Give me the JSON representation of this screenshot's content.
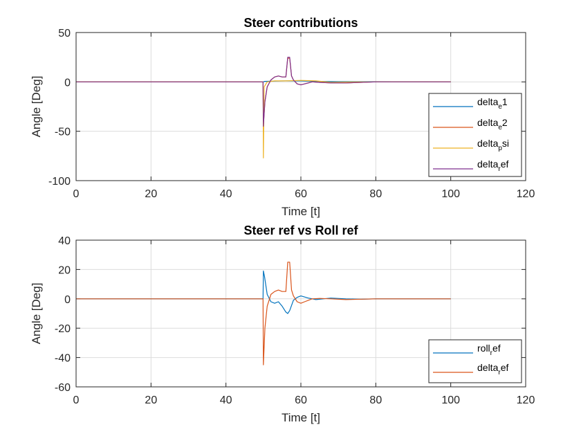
{
  "chart_data": [
    {
      "type": "line",
      "title": "Steer contributions",
      "xlabel": "Time [t]",
      "ylabel": "Angle [Deg]",
      "xlim": [
        0,
        120
      ],
      "ylim": [
        -100,
        50
      ],
      "xticks": [
        "0",
        "20",
        "40",
        "60",
        "80",
        "100",
        "120"
      ],
      "yticks": [
        "-100",
        "-50",
        "0",
        "50"
      ],
      "grid": true,
      "legend_position": "bottom-right",
      "series": [
        {
          "name": "delta_e1",
          "legend_main": "delta",
          "legend_sub": "e",
          "legend_tail": "1",
          "color": "#0072BD",
          "x": [
            0,
            49.9,
            50,
            50.3,
            51,
            53,
            56,
            60,
            65,
            70,
            100
          ],
          "y": [
            0,
            0,
            0,
            0.5,
            0.6,
            0.8,
            1,
            1,
            0.5,
            0.2,
            0
          ]
        },
        {
          "name": "delta_e2",
          "legend_main": "delta",
          "legend_sub": "e",
          "legend_tail": "2",
          "color": "#D95319",
          "x": [
            0,
            49.9,
            50,
            50.4,
            51,
            52,
            53,
            54,
            55,
            56,
            56.5,
            57,
            57.5,
            58,
            59,
            60,
            61,
            62,
            63,
            65,
            68,
            72,
            80,
            100
          ],
          "y": [
            0,
            0,
            -44,
            -20,
            -5,
            2,
            5,
            6,
            5,
            5,
            24,
            24,
            6,
            2,
            -2,
            -3,
            -2,
            -1,
            0,
            -0.5,
            -1,
            -1,
            0,
            0
          ]
        },
        {
          "name": "delta_psi",
          "legend_main": "delta",
          "legend_sub": "p",
          "legend_tail": "si",
          "color": "#EDB120",
          "x": [
            0,
            49.9,
            50,
            50.2,
            51,
            53,
            56,
            60,
            64,
            68,
            75,
            100
          ],
          "y": [
            0,
            0,
            -77,
            -5,
            0,
            1,
            1,
            1.5,
            1,
            -0.5,
            0,
            0
          ]
        },
        {
          "name": "delta_ref",
          "legend_main": "delta",
          "legend_sub": "r",
          "legend_tail": "ef",
          "color": "#7E2F8E",
          "x": [
            0,
            49.9,
            50,
            50.4,
            51,
            52,
            53,
            54,
            55,
            56,
            56.5,
            57,
            57.5,
            58,
            59,
            60,
            61,
            62,
            63,
            65,
            68,
            72,
            80,
            100
          ],
          "y": [
            0,
            0,
            -45,
            -20,
            -5,
            2,
            5,
            6,
            5,
            5,
            25,
            25,
            6,
            2,
            -2,
            -3,
            -2,
            -1,
            0,
            -0.5,
            -1,
            -1,
            0,
            0
          ]
        }
      ]
    },
    {
      "type": "line",
      "title": "Steer ref vs Roll ref",
      "xlabel": "Time [t]",
      "ylabel": "Angle [Deg]",
      "xlim": [
        0,
        120
      ],
      "ylim": [
        -60,
        40
      ],
      "xticks": [
        "0",
        "20",
        "40",
        "60",
        "80",
        "100",
        "120"
      ],
      "yticks": [
        "-60",
        "-40",
        "-20",
        "0",
        "20",
        "40"
      ],
      "grid": true,
      "legend_position": "bottom-right",
      "series": [
        {
          "name": "roll_ref",
          "legend_main": "roll",
          "legend_sub": "r",
          "legend_tail": "ef",
          "color": "#0072BD",
          "x": [
            0,
            49.9,
            50,
            50.3,
            51,
            52,
            53,
            54,
            55,
            56,
            56.5,
            57,
            58,
            59,
            60,
            62,
            64,
            66,
            68,
            72,
            76,
            80,
            100
          ],
          "y": [
            0,
            0,
            19,
            15,
            3,
            -2,
            -3,
            -2,
            -5,
            -9,
            -10,
            -8,
            -1,
            1,
            2,
            0.5,
            -0.5,
            0,
            0.5,
            0,
            -0.3,
            0,
            0
          ]
        },
        {
          "name": "delta_ref",
          "legend_main": "delta",
          "legend_sub": "r",
          "legend_tail": "ef",
          "color": "#D95319",
          "x": [
            0,
            49.9,
            50,
            50.4,
            51,
            52,
            53,
            54,
            55,
            56,
            56.5,
            57,
            57.5,
            58,
            59,
            60,
            61,
            62,
            63,
            65,
            68,
            72,
            80,
            100
          ],
          "y": [
            0,
            0,
            -45,
            -20,
            -5,
            3,
            5,
            6,
            5,
            5,
            25,
            25,
            6,
            2,
            -2,
            -3,
            -2,
            -1,
            0,
            0.3,
            0,
            -0.5,
            0,
            0
          ]
        }
      ]
    }
  ]
}
